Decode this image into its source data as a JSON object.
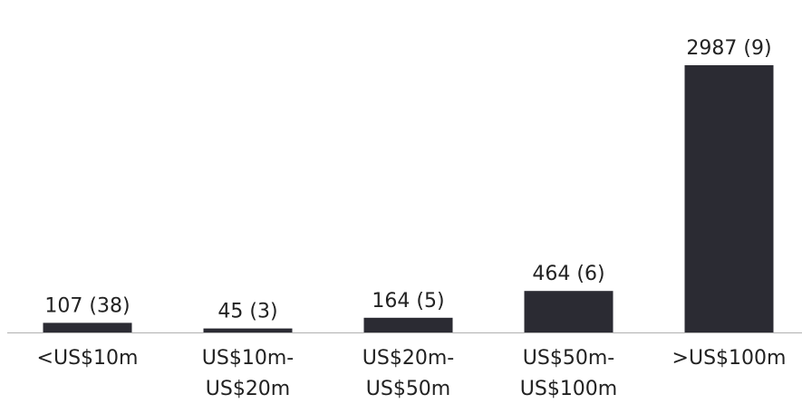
{
  "chart_data": {
    "type": "bar",
    "title": "",
    "xlabel": "",
    "ylabel": "",
    "categories": [
      [
        "<US$10m"
      ],
      [
        "US$10m-",
        "US$20m"
      ],
      [
        "US$20m-",
        "US$50m"
      ],
      [
        "US$50m-",
        "US$100m"
      ],
      [
        ">US$100m"
      ]
    ],
    "values": [
      107,
      45,
      164,
      464,
      2987
    ],
    "data_labels": [
      "107 (38)",
      "45 (3)",
      "164 (5)",
      "464 (6)",
      "2987 (9)"
    ],
    "ylim": [
      0,
      2987
    ],
    "grid": false,
    "legend": "none",
    "colors": {
      "bar": "#2b2b33",
      "axis": "#b0b0b0",
      "text": "#222222"
    }
  }
}
